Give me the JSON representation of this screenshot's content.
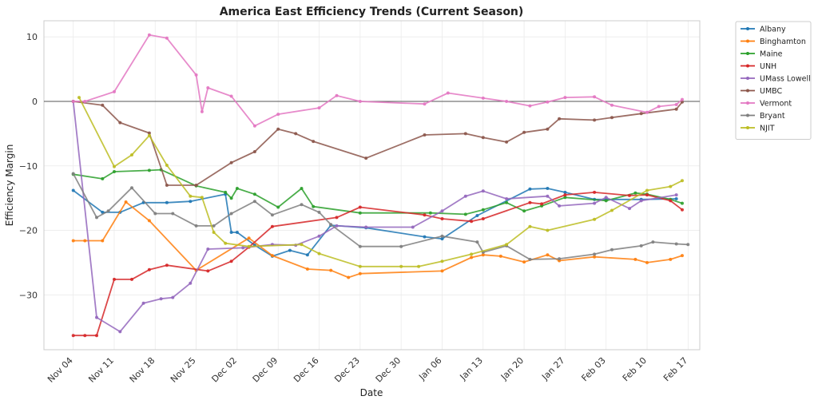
{
  "chart_data": {
    "type": "line",
    "title": "America East Efficiency Trends (Current Season)",
    "xlabel": "Date",
    "ylabel": "Efficiency Margin",
    "xlim": [
      "2024-10-30",
      "2025-02-19"
    ],
    "ylim": [
      -38.5,
      12.5
    ],
    "x_ticks": [
      "2024-11-04",
      "2024-11-11",
      "2024-11-18",
      "2024-11-25",
      "2024-12-02",
      "2024-12-09",
      "2024-12-16",
      "2024-12-23",
      "2024-12-30",
      "2025-01-06",
      "2025-01-13",
      "2025-01-20",
      "2025-01-27",
      "2025-02-03",
      "2025-02-10",
      "2025-02-17"
    ],
    "x_tick_labels": [
      "Nov 04",
      "Nov 11",
      "Nov 18",
      "Nov 25",
      "Dec 02",
      "Dec 09",
      "Dec 16",
      "Dec 23",
      "Dec 30",
      "Jan 06",
      "Jan 13",
      "Jan 20",
      "Jan 27",
      "Feb 03",
      "Feb 10",
      "Feb 17"
    ],
    "y_ticks": [
      -30,
      -20,
      -10,
      0,
      10
    ],
    "y_tick_labels": [
      "−30",
      "−20",
      "−10",
      "0",
      "10"
    ],
    "reference_line_y": 0,
    "grid": true,
    "legend_position": "outside-top-right",
    "series": [
      {
        "name": "Albany",
        "color": "#1f77b4",
        "points": [
          [
            "2024-11-04",
            -13.8
          ],
          [
            "2024-11-09",
            -17.2
          ],
          [
            "2024-11-12",
            -17.2
          ],
          [
            "2024-11-16",
            -15.7
          ],
          [
            "2024-11-20",
            -15.7
          ],
          [
            "2024-11-24",
            -15.5
          ],
          [
            "2024-11-30",
            -14.4
          ],
          [
            "2024-12-01",
            -20.3
          ],
          [
            "2024-12-02",
            -20.3
          ],
          [
            "2024-12-05",
            -22.3
          ],
          [
            "2024-12-08",
            -24.0
          ],
          [
            "2024-12-11",
            -23.1
          ],
          [
            "2024-12-14",
            -23.8
          ],
          [
            "2024-12-18",
            -19.2
          ],
          [
            "2024-12-24",
            -19.6
          ],
          [
            "2025-01-03",
            -21.0
          ],
          [
            "2025-01-06",
            -21.3
          ],
          [
            "2025-01-12",
            -17.7
          ],
          [
            "2025-01-21",
            -13.6
          ],
          [
            "2025-01-24",
            -13.5
          ],
          [
            "2025-01-27",
            -14.1
          ],
          [
            "2025-02-01",
            -15.2
          ],
          [
            "2025-02-03",
            -15.2
          ],
          [
            "2025-02-09",
            -15.2
          ],
          [
            "2025-02-15",
            -15.1
          ]
        ]
      },
      {
        "name": "Binghamton",
        "color": "#ff7f0e",
        "points": [
          [
            "2024-11-04",
            -21.6
          ],
          [
            "2024-11-06",
            -21.6
          ],
          [
            "2024-11-09",
            -21.6
          ],
          [
            "2024-11-13",
            -15.6
          ],
          [
            "2024-11-17",
            -18.5
          ],
          [
            "2024-11-25",
            -26.2
          ],
          [
            "2024-12-04",
            -21.2
          ],
          [
            "2024-12-08",
            -23.9
          ],
          [
            "2024-12-14",
            -26.0
          ],
          [
            "2024-12-18",
            -26.2
          ],
          [
            "2024-12-21",
            -27.3
          ],
          [
            "2024-12-23",
            -26.7
          ],
          [
            "2025-01-06",
            -26.3
          ],
          [
            "2025-01-11",
            -24.2
          ],
          [
            "2025-01-13",
            -23.8
          ],
          [
            "2025-01-16",
            -24.0
          ],
          [
            "2025-01-20",
            -24.9
          ],
          [
            "2025-01-24",
            -23.8
          ],
          [
            "2025-01-26",
            -24.7
          ],
          [
            "2025-02-01",
            -24.1
          ],
          [
            "2025-02-08",
            -24.5
          ],
          [
            "2025-02-10",
            -25.0
          ],
          [
            "2025-02-14",
            -24.5
          ],
          [
            "2025-02-16",
            -23.9
          ]
        ]
      },
      {
        "name": "Maine",
        "color": "#2ca02c",
        "points": [
          [
            "2024-11-04",
            -11.3
          ],
          [
            "2024-11-09",
            -12.0
          ],
          [
            "2024-11-11",
            -10.9
          ],
          [
            "2024-11-17",
            -10.7
          ],
          [
            "2024-11-19",
            -10.6
          ],
          [
            "2024-11-25",
            -13.1
          ],
          [
            "2024-11-30",
            -14.1
          ],
          [
            "2024-12-01",
            -15.0
          ],
          [
            "2024-12-02",
            -13.5
          ],
          [
            "2024-12-05",
            -14.4
          ],
          [
            "2024-12-09",
            -16.4
          ],
          [
            "2024-12-13",
            -13.5
          ],
          [
            "2024-12-15",
            -16.3
          ],
          [
            "2024-12-23",
            -17.3
          ],
          [
            "2025-01-04",
            -17.3
          ],
          [
            "2025-01-10",
            -17.5
          ],
          [
            "2025-01-13",
            -16.8
          ],
          [
            "2025-01-17",
            -15.7
          ],
          [
            "2025-01-20",
            -17.0
          ],
          [
            "2025-01-23",
            -16.2
          ],
          [
            "2025-01-27",
            -14.9
          ],
          [
            "2025-02-03",
            -15.4
          ],
          [
            "2025-02-08",
            -14.2
          ],
          [
            "2025-02-10",
            -14.4
          ],
          [
            "2025-02-14",
            -15.2
          ],
          [
            "2025-02-16",
            -15.8
          ]
        ]
      },
      {
        "name": "UNH",
        "color": "#d62728",
        "points": [
          [
            "2024-11-04",
            -36.3
          ],
          [
            "2024-11-06",
            -36.3
          ],
          [
            "2024-11-08",
            -36.3
          ],
          [
            "2024-11-11",
            -27.6
          ],
          [
            "2024-11-14",
            -27.6
          ],
          [
            "2024-11-17",
            -26.1
          ],
          [
            "2024-11-20",
            -25.4
          ],
          [
            "2024-11-27",
            -26.3
          ],
          [
            "2024-12-01",
            -24.8
          ],
          [
            "2024-12-04",
            -22.6
          ],
          [
            "2024-12-08",
            -19.4
          ],
          [
            "2024-12-19",
            -18.0
          ],
          [
            "2024-12-23",
            -16.4
          ],
          [
            "2025-01-03",
            -17.6
          ],
          [
            "2025-01-06",
            -18.2
          ],
          [
            "2025-01-11",
            -18.6
          ],
          [
            "2025-01-13",
            -18.2
          ],
          [
            "2025-01-21",
            -15.7
          ],
          [
            "2025-01-23",
            -15.9
          ],
          [
            "2025-01-27",
            -14.5
          ],
          [
            "2025-02-01",
            -14.1
          ],
          [
            "2025-02-07",
            -14.6
          ],
          [
            "2025-02-10",
            -14.5
          ],
          [
            "2025-02-14",
            -15.4
          ],
          [
            "2025-02-16",
            -16.8
          ]
        ]
      },
      {
        "name": "UMass Lowell",
        "color": "#9467bd",
        "points": [
          [
            "2024-11-04",
            0.0
          ],
          [
            "2024-11-08",
            -33.5
          ],
          [
            "2024-11-12",
            -35.7
          ],
          [
            "2024-11-16",
            -31.3
          ],
          [
            "2024-11-19",
            -30.6
          ],
          [
            "2024-11-21",
            -30.4
          ],
          [
            "2024-11-24",
            -28.2
          ],
          [
            "2024-11-27",
            -22.9
          ],
          [
            "2024-12-03",
            -22.7
          ],
          [
            "2024-12-08",
            -22.2
          ],
          [
            "2024-12-12",
            -22.3
          ],
          [
            "2024-12-16",
            -20.9
          ],
          [
            "2024-12-19",
            -19.3
          ],
          [
            "2024-12-24",
            -19.5
          ],
          [
            "2025-01-01",
            -19.5
          ],
          [
            "2025-01-06",
            -17.0
          ],
          [
            "2025-01-10",
            -14.7
          ],
          [
            "2025-01-13",
            -13.9
          ],
          [
            "2025-01-17",
            -15.1
          ],
          [
            "2025-01-24",
            -14.7
          ],
          [
            "2025-01-26",
            -16.2
          ],
          [
            "2025-02-01",
            -15.8
          ],
          [
            "2025-02-03",
            -14.9
          ],
          [
            "2025-02-07",
            -16.6
          ],
          [
            "2025-02-09",
            -15.4
          ],
          [
            "2025-02-15",
            -14.5
          ]
        ]
      },
      {
        "name": "UMBC",
        "color": "#8c564b",
        "points": [
          [
            "2024-11-04",
            0.0
          ],
          [
            "2024-11-09",
            -0.6
          ],
          [
            "2024-11-12",
            -3.3
          ],
          [
            "2024-11-17",
            -4.9
          ],
          [
            "2024-11-20",
            -13.0
          ],
          [
            "2024-11-25",
            -13.0
          ],
          [
            "2024-12-01",
            -9.5
          ],
          [
            "2024-12-05",
            -7.8
          ],
          [
            "2024-12-09",
            -4.3
          ],
          [
            "2024-12-12",
            -5.0
          ],
          [
            "2024-12-15",
            -6.2
          ],
          [
            "2024-12-24",
            -8.8
          ],
          [
            "2025-01-03",
            -5.2
          ],
          [
            "2025-01-10",
            -5.0
          ],
          [
            "2025-01-13",
            -5.6
          ],
          [
            "2025-01-17",
            -6.3
          ],
          [
            "2025-01-20",
            -4.8
          ],
          [
            "2025-01-24",
            -4.3
          ],
          [
            "2025-01-26",
            -2.7
          ],
          [
            "2025-02-01",
            -2.9
          ],
          [
            "2025-02-04",
            -2.5
          ],
          [
            "2025-02-09",
            -1.9
          ],
          [
            "2025-02-15",
            -1.2
          ],
          [
            "2025-02-16",
            -0.1
          ]
        ]
      },
      {
        "name": "Vermont",
        "color": "#e377c2",
        "points": [
          [
            "2024-11-04",
            0.0
          ],
          [
            "2024-11-06",
            0.0
          ],
          [
            "2024-11-11",
            1.5
          ],
          [
            "2024-11-17",
            10.3
          ],
          [
            "2024-11-20",
            9.8
          ],
          [
            "2024-11-25",
            4.1
          ],
          [
            "2024-11-26",
            -1.6
          ],
          [
            "2024-11-27",
            2.1
          ],
          [
            "2024-12-01",
            0.8
          ],
          [
            "2024-12-05",
            -3.8
          ],
          [
            "2024-12-09",
            -2.0
          ],
          [
            "2024-12-16",
            -1.0
          ],
          [
            "2024-12-19",
            0.9
          ],
          [
            "2024-12-23",
            0.0
          ],
          [
            "2025-01-03",
            -0.4
          ],
          [
            "2025-01-07",
            1.3
          ],
          [
            "2025-01-13",
            0.5
          ],
          [
            "2025-01-17",
            0.0
          ],
          [
            "2025-01-21",
            -0.7
          ],
          [
            "2025-01-24",
            -0.1
          ],
          [
            "2025-01-27",
            0.6
          ],
          [
            "2025-02-01",
            0.7
          ],
          [
            "2025-02-04",
            -0.6
          ],
          [
            "2025-02-10",
            -1.7
          ],
          [
            "2025-02-12",
            -0.8
          ],
          [
            "2025-02-15",
            -0.5
          ],
          [
            "2025-02-16",
            0.3
          ]
        ]
      },
      {
        "name": "Bryant",
        "color": "#7f7f7f",
        "points": [
          [
            "2024-11-04",
            -11.2
          ],
          [
            "2024-11-08",
            -18.0
          ],
          [
            "2024-11-10",
            -17.0
          ],
          [
            "2024-11-14",
            -13.4
          ],
          [
            "2024-11-18",
            -17.4
          ],
          [
            "2024-11-21",
            -17.4
          ],
          [
            "2024-11-25",
            -19.3
          ],
          [
            "2024-11-28",
            -19.3
          ],
          [
            "2024-12-01",
            -17.4
          ],
          [
            "2024-12-05",
            -15.5
          ],
          [
            "2024-12-08",
            -17.6
          ],
          [
            "2024-12-13",
            -16.0
          ],
          [
            "2024-12-16",
            -17.2
          ],
          [
            "2024-12-18",
            -19.1
          ],
          [
            "2024-12-23",
            -22.5
          ],
          [
            "2024-12-30",
            -22.5
          ],
          [
            "2025-01-06",
            -20.9
          ],
          [
            "2025-01-12",
            -21.8
          ],
          [
            "2025-01-13",
            -23.4
          ],
          [
            "2025-01-17",
            -22.4
          ],
          [
            "2025-01-21",
            -24.5
          ],
          [
            "2025-01-26",
            -24.4
          ],
          [
            "2025-02-01",
            -23.7
          ],
          [
            "2025-02-04",
            -23.0
          ],
          [
            "2025-02-09",
            -22.4
          ],
          [
            "2025-02-11",
            -21.8
          ],
          [
            "2025-02-15",
            -22.1
          ],
          [
            "2025-02-17",
            -22.2
          ]
        ]
      },
      {
        "name": "NJIT",
        "color": "#bcbd22",
        "points": [
          [
            "2024-11-05",
            0.6
          ],
          [
            "2024-11-11",
            -10.1
          ],
          [
            "2024-11-14",
            -8.3
          ],
          [
            "2024-11-17",
            -5.3
          ],
          [
            "2024-11-20",
            -9.9
          ],
          [
            "2024-11-24",
            -14.7
          ],
          [
            "2024-11-26",
            -14.9
          ],
          [
            "2024-11-28",
            -20.3
          ],
          [
            "2024-11-30",
            -22.0
          ],
          [
            "2024-12-04",
            -22.5
          ],
          [
            "2024-12-13",
            -22.2
          ],
          [
            "2024-12-16",
            -23.6
          ],
          [
            "2024-12-23",
            -25.6
          ],
          [
            "2024-12-30",
            -25.6
          ],
          [
            "2025-01-02",
            -25.6
          ],
          [
            "2025-01-06",
            -24.8
          ],
          [
            "2025-01-11",
            -23.7
          ],
          [
            "2025-01-17",
            -22.2
          ],
          [
            "2025-01-21",
            -19.4
          ],
          [
            "2025-01-24",
            -20.0
          ],
          [
            "2025-02-01",
            -18.3
          ],
          [
            "2025-02-04",
            -16.9
          ],
          [
            "2025-02-10",
            -13.8
          ],
          [
            "2025-02-14",
            -13.2
          ],
          [
            "2025-02-16",
            -12.3
          ]
        ]
      }
    ]
  }
}
